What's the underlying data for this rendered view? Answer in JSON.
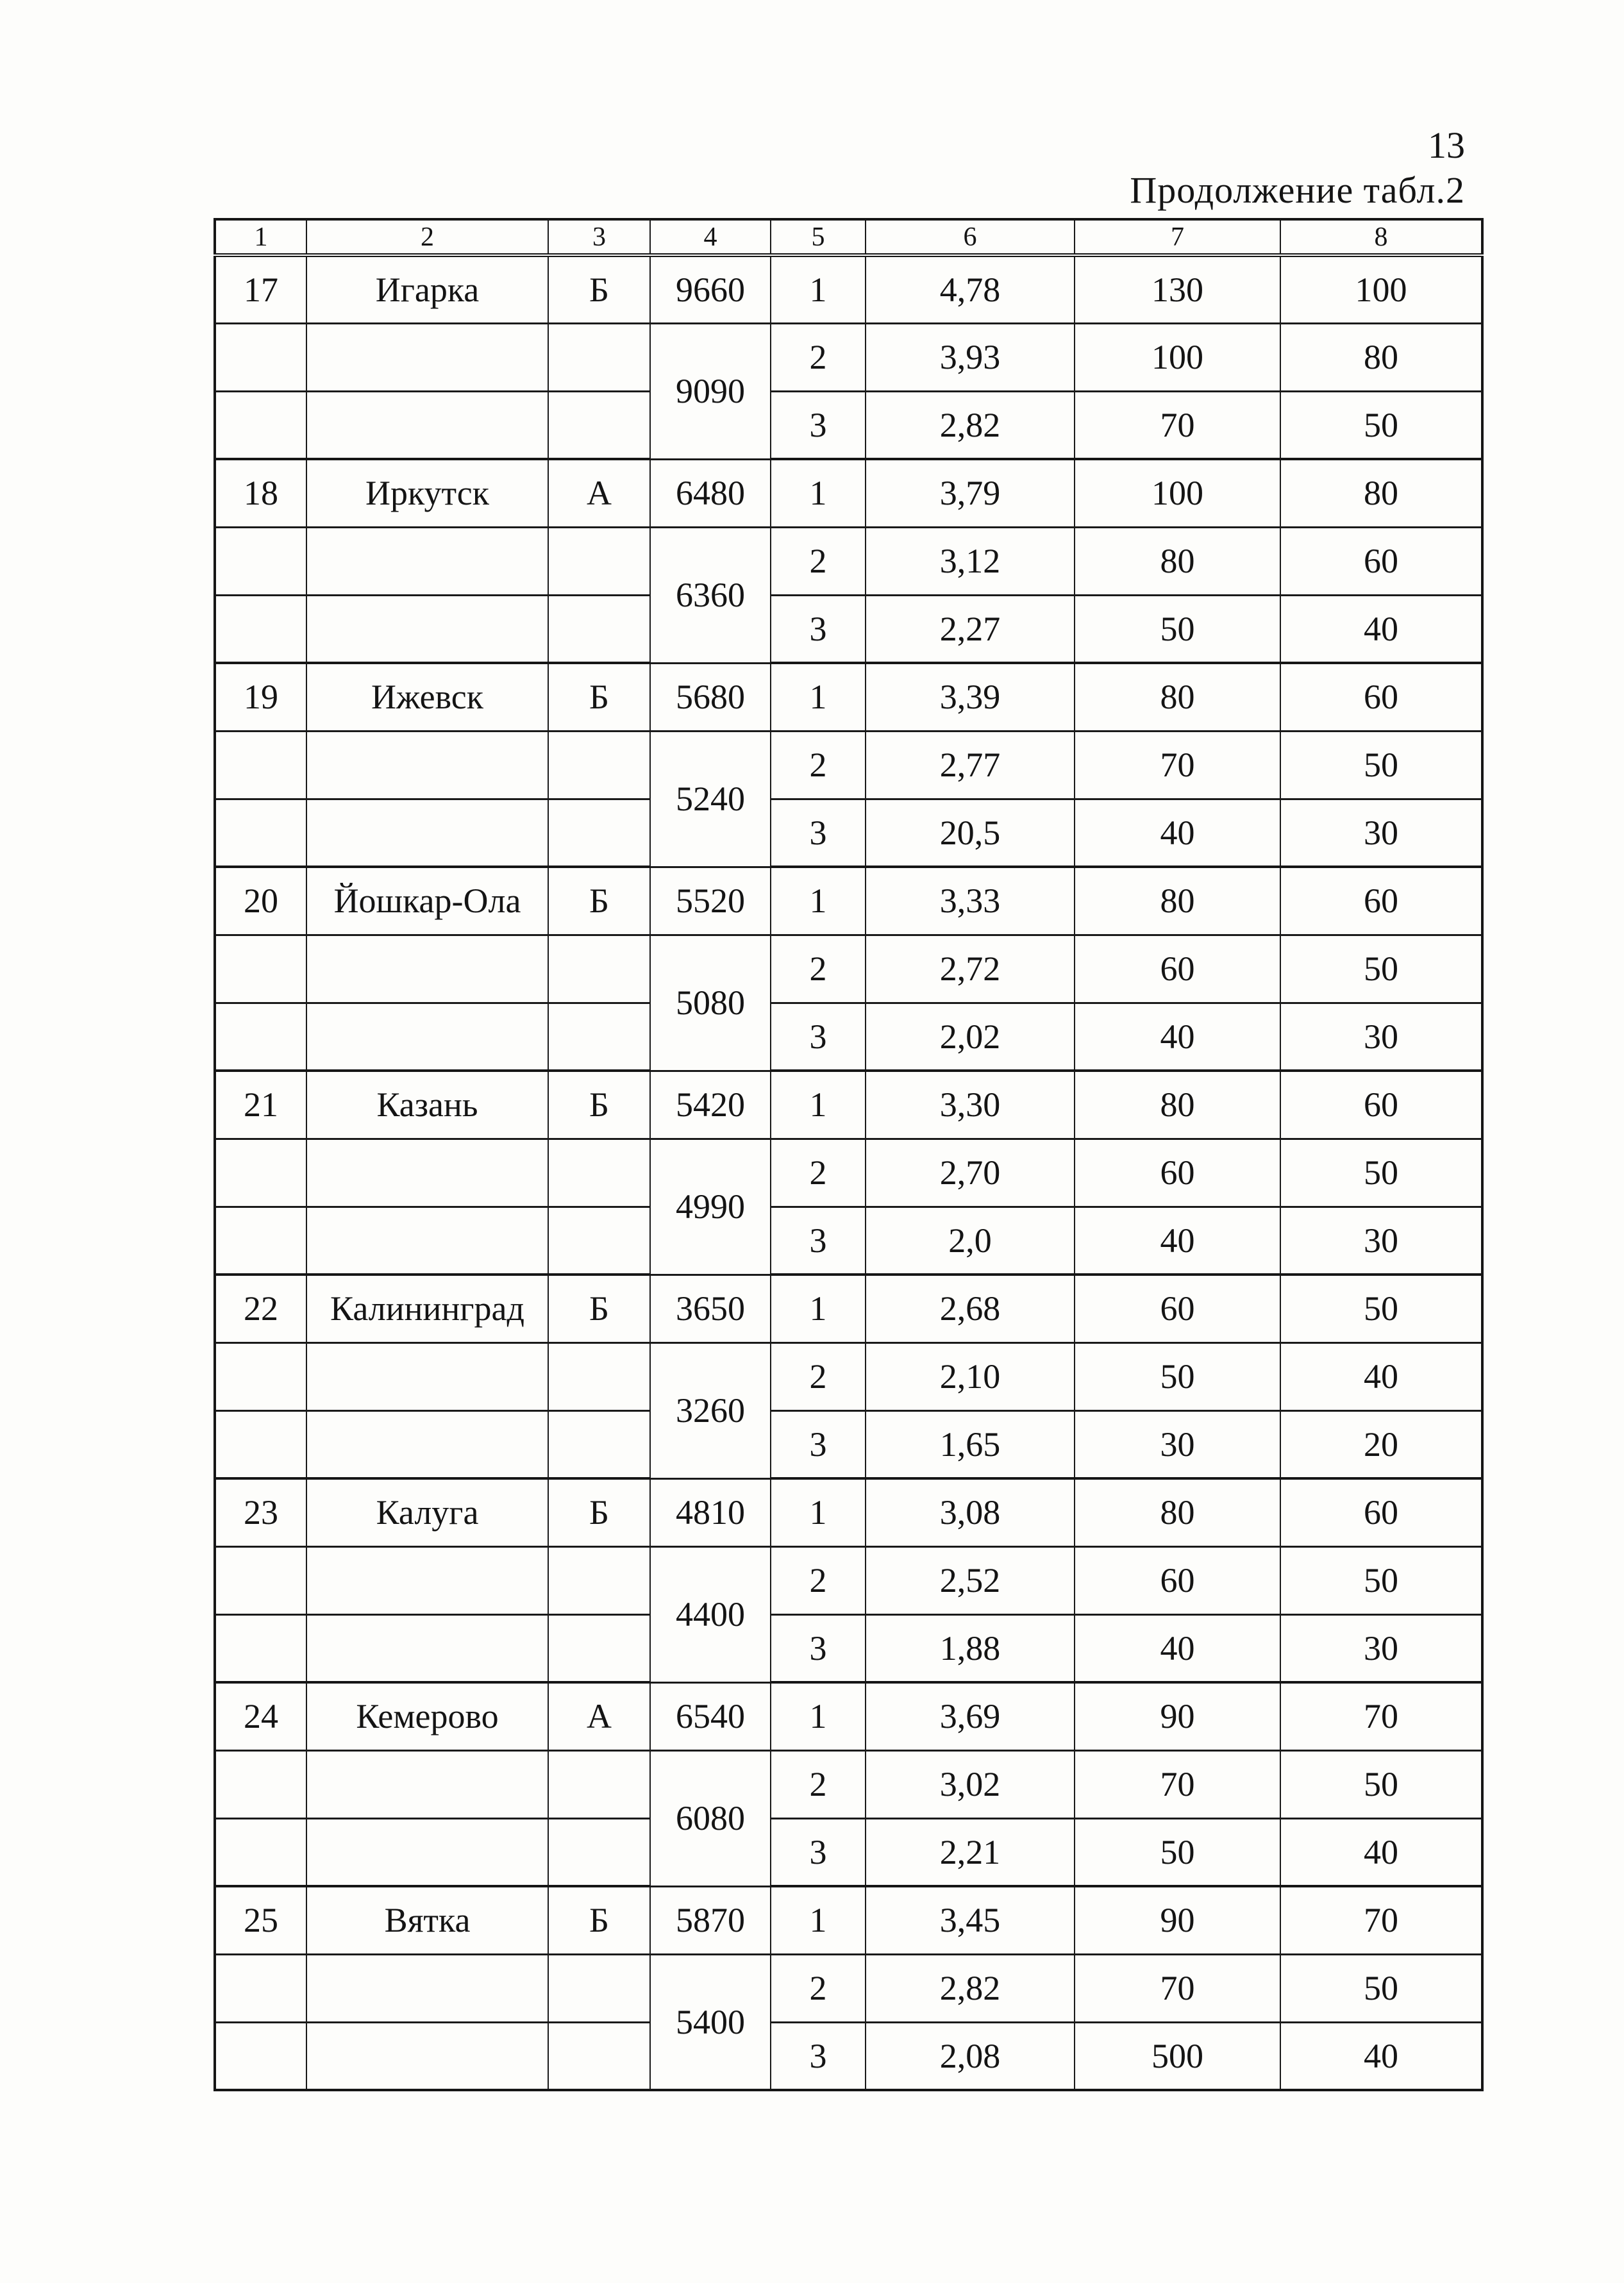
{
  "page": {
    "number": "13",
    "subtitle": "Продолжение табл.2"
  },
  "table": {
    "header": [
      "1",
      "2",
      "3",
      "4",
      "5",
      "6",
      "7",
      "8"
    ],
    "groups": [
      {
        "num": "17",
        "city": "Игарка",
        "cat": "Б",
        "v1": "9660",
        "v2": "9090",
        "rows": [
          [
            "1",
            "4,78",
            "130",
            "100"
          ],
          [
            "2",
            "3,93",
            "100",
            "80"
          ],
          [
            "3",
            "2,82",
            "70",
            "50"
          ]
        ]
      },
      {
        "num": "18",
        "city": "Иркутск",
        "cat": "А",
        "v1": "6480",
        "v2": "6360",
        "rows": [
          [
            "1",
            "3,79",
            "100",
            "80"
          ],
          [
            "2",
            "3,12",
            "80",
            "60"
          ],
          [
            "3",
            "2,27",
            "50",
            "40"
          ]
        ]
      },
      {
        "num": "19",
        "city": "Ижевск",
        "cat": "Б",
        "v1": "5680",
        "v2": "5240",
        "rows": [
          [
            "1",
            "3,39",
            "80",
            "60"
          ],
          [
            "2",
            "2,77",
            "70",
            "50"
          ],
          [
            "3",
            "20,5",
            "40",
            "30"
          ]
        ]
      },
      {
        "num": "20",
        "city": "Йошкар-Ола",
        "cat": "Б",
        "v1": "5520",
        "v2": "5080",
        "rows": [
          [
            "1",
            "3,33",
            "80",
            "60"
          ],
          [
            "2",
            "2,72",
            "60",
            "50"
          ],
          [
            "3",
            "2,02",
            "40",
            "30"
          ]
        ]
      },
      {
        "num": "21",
        "city": "Казань",
        "cat": "Б",
        "v1": "5420",
        "v2": "4990",
        "rows": [
          [
            "1",
            "3,30",
            "80",
            "60"
          ],
          [
            "2",
            "2,70",
            "60",
            "50"
          ],
          [
            "3",
            "2,0",
            "40",
            "30"
          ]
        ]
      },
      {
        "num": "22",
        "city": "Калининград",
        "cat": "Б",
        "v1": "3650",
        "v2": "3260",
        "rows": [
          [
            "1",
            "2,68",
            "60",
            "50"
          ],
          [
            "2",
            "2,10",
            "50",
            "40"
          ],
          [
            "3",
            "1,65",
            "30",
            "20"
          ]
        ]
      },
      {
        "num": "23",
        "city": "Калуга",
        "cat": "Б",
        "v1": "4810",
        "v2": "4400",
        "rows": [
          [
            "1",
            "3,08",
            "80",
            "60"
          ],
          [
            "2",
            "2,52",
            "60",
            "50"
          ],
          [
            "3",
            "1,88",
            "40",
            "30"
          ]
        ]
      },
      {
        "num": "24",
        "city": "Кемерово",
        "cat": "А",
        "v1": "6540",
        "v2": "6080",
        "rows": [
          [
            "1",
            "3,69",
            "90",
            "70"
          ],
          [
            "2",
            "3,02",
            "70",
            "50"
          ],
          [
            "3",
            "2,21",
            "50",
            "40"
          ]
        ]
      },
      {
        "num": "25",
        "city": "Вятка",
        "cat": "Б",
        "v1": "5870",
        "v2": "5400",
        "rows": [
          [
            "1",
            "3,45",
            "90",
            "70"
          ],
          [
            "2",
            "2,82",
            "70",
            "50"
          ],
          [
            "3",
            "2,08",
            "500",
            "40"
          ]
        ]
      }
    ]
  }
}
